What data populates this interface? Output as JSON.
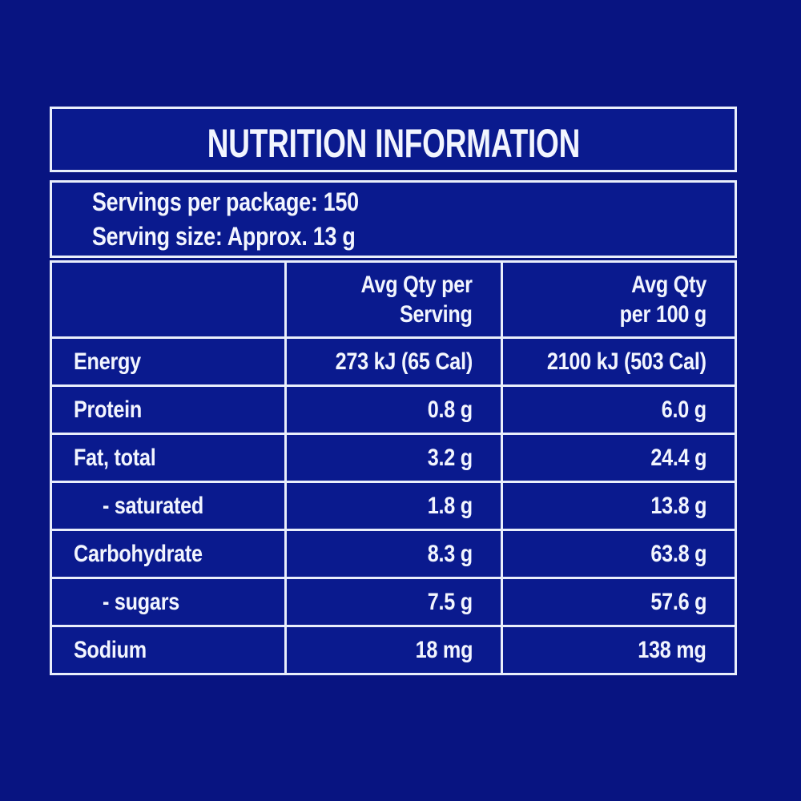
{
  "colors": {
    "page_background": "#081481",
    "panel_background": "#0a1a8e",
    "line": "#e9eefb",
    "text": "#f2f5fe"
  },
  "title": "NUTRITION INFORMATION",
  "serving_info": {
    "servings_per_package": "Servings per package: 150",
    "serving_size": "Serving size: Approx. 13 g"
  },
  "table": {
    "header": {
      "nutrient_column": "",
      "per_serving_line1": "Avg Qty per",
      "per_serving_line2": "Serving",
      "per_100g_line1": "Avg Qty",
      "per_100g_line2": "per 100 g"
    },
    "rows": [
      {
        "label": "Energy",
        "indent": false,
        "per_serving": "273 kJ (65 Cal)",
        "per_100g": "2100 kJ (503 Cal)"
      },
      {
        "label": "Protein",
        "indent": false,
        "per_serving": "0.8 g",
        "per_100g": "6.0 g"
      },
      {
        "label": "Fat, total",
        "indent": false,
        "per_serving": "3.2 g",
        "per_100g": "24.4 g"
      },
      {
        "label": "- saturated",
        "indent": true,
        "per_serving": "1.8 g",
        "per_100g": "13.8 g"
      },
      {
        "label": "Carbohydrate",
        "indent": false,
        "per_serving": "8.3 g",
        "per_100g": "63.8 g"
      },
      {
        "label": "- sugars",
        "indent": true,
        "per_serving": "7.5 g",
        "per_100g": "57.6 g"
      },
      {
        "label": "Sodium",
        "indent": false,
        "per_serving": "18 mg",
        "per_100g": "138 mg"
      }
    ]
  }
}
